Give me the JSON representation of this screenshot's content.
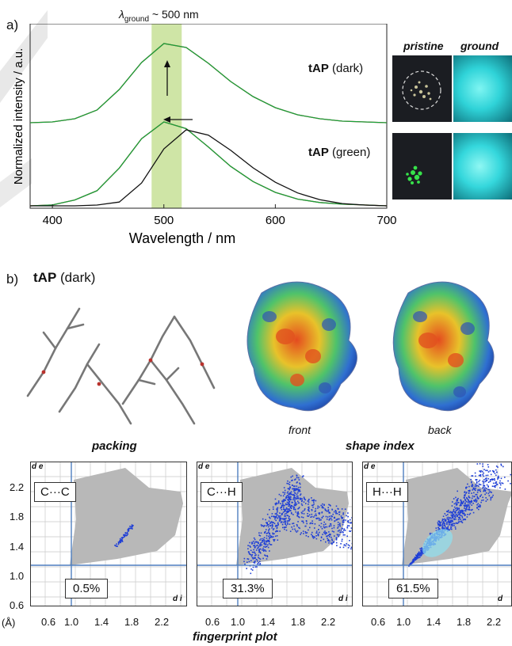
{
  "panel_a": {
    "label": "a)",
    "annotation_prefix": "λ",
    "annotation_sub": "ground",
    "annotation_suffix": " ~ 500 nm",
    "xlabel": "Wavelength / nm",
    "ylabel": "Normalized intensity / a.u.",
    "xticks": [
      "400",
      "500",
      "600",
      "700"
    ],
    "traces": [
      {
        "label_bold": "tAP",
        "label_rest": " (dark)"
      },
      {
        "label_bold": "tAP",
        "label_rest": " (green)"
      }
    ],
    "photo_headers": [
      "pristine",
      "ground"
    ],
    "colors": {
      "red": "#e0252a",
      "green": "#17a23a",
      "black": "#111111",
      "blue": "#3949d8",
      "band": "#cfe5a6"
    }
  },
  "chart_data": {
    "type": "line",
    "xlabel": "Wavelength / nm",
    "ylabel": "Normalized intensity / a.u.",
    "xlim": [
      380,
      700
    ],
    "x": [
      380,
      400,
      420,
      440,
      460,
      480,
      500,
      520,
      540,
      560,
      580,
      600,
      620,
      640,
      660,
      680,
      700
    ],
    "series": [
      {
        "values": [
          0.0,
          0.01,
          0.05,
          0.16,
          0.42,
          0.76,
          1.0,
          0.95,
          0.75,
          0.52,
          0.33,
          0.19,
          0.1,
          0.05,
          0.02,
          0.01,
          0.0
        ]
      },
      {
        "values": [
          0.0,
          0.01,
          0.05,
          0.16,
          0.42,
          0.76,
          1.0,
          0.95,
          0.75,
          0.52,
          0.33,
          0.19,
          0.1,
          0.05,
          0.02,
          0.01,
          0.0
        ]
      },
      {
        "values": [
          0.0,
          0.01,
          0.07,
          0.18,
          0.45,
          0.8,
          1.0,
          0.92,
          0.7,
          0.47,
          0.29,
          0.16,
          0.08,
          0.04,
          0.02,
          0.01,
          0.0
        ]
      },
      {
        "values": [
          0.0,
          0.01,
          0.07,
          0.18,
          0.45,
          0.8,
          1.0,
          0.92,
          0.7,
          0.47,
          0.29,
          0.16,
          0.08,
          0.04,
          0.02,
          0.01,
          0.0
        ]
      },
      {
        "values": [
          0.0,
          0.0,
          0.0,
          0.01,
          0.05,
          0.3,
          0.75,
          1.0,
          0.93,
          0.73,
          0.5,
          0.31,
          0.17,
          0.08,
          0.03,
          0.01,
          0.0
        ]
      }
    ]
  },
  "panel_b": {
    "label": "b)",
    "title_bold": "tAP",
    "title_rest": " (dark)",
    "packing_label": "packing",
    "shape_index_label": "shape index",
    "front_label": "front",
    "back_label": "back"
  },
  "fingerprint": {
    "axis_de": "d e",
    "axis_di": "d i",
    "axis_d": "d",
    "unit": "(Å)",
    "yticks": [
      "2.2",
      "1.8",
      "1.4",
      "1.0",
      "0.6"
    ],
    "xticks": [
      "0.6",
      "1.0",
      "1.4",
      "1.8",
      "2.2"
    ],
    "caption": "fingerprint plot",
    "plots": [
      {
        "contact": "C···C",
        "percent": "0.5%"
      },
      {
        "contact": "C···H",
        "percent": "31.3%"
      },
      {
        "contact": "H···H",
        "percent": "61.5%"
      }
    ]
  }
}
